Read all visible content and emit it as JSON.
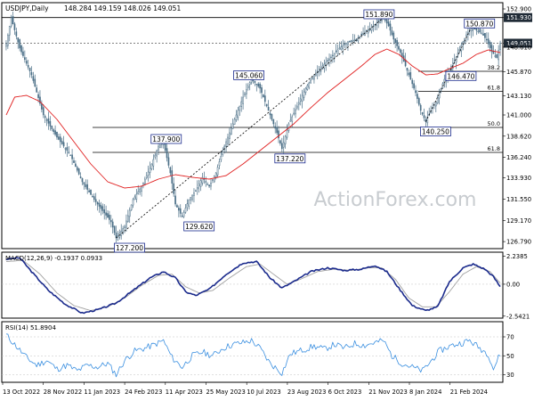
{
  "header": {
    "symbol_line": "USDJPY,Daily",
    "ohlc": "148.284 149.159 148.026 149.051"
  },
  "watermark": "ActionForex.com",
  "colors": {
    "candle": "#4a6e86",
    "ma": "#e02020",
    "level": "#000000",
    "macd": "#1a2a8c",
    "signal": "#a0a0a0",
    "rsi": "#3a8fe0",
    "label_border": "#1a2a8c",
    "highlight": "#1f2a36"
  },
  "chart_data": [
    {
      "type": "candlestick",
      "title": "USDJPY,Daily",
      "ylim": [
        126.0,
        153.6
      ],
      "y_ticks": [
        "152.900",
        "151.930",
        "149.051",
        "148.610",
        "145.870",
        "143.130",
        "141.000",
        "138.620",
        "136.240",
        "133.930",
        "131.550",
        "129.170",
        "126.790"
      ],
      "x_ticks": [
        "13 Oct 2022",
        "28 Nov 2022",
        "11 Jan 2023",
        "24 Feb 2023",
        "11 Apr 2023",
        "25 May 2023",
        "10 Jul 2023",
        "23 Aug 2023",
        "6 Oct 2023",
        "21 Nov 2023",
        "8 Jan 2024",
        "21 Feb 2024"
      ],
      "price_path": [
        [
          0,
          149.0
        ],
        [
          3,
          151.9
        ],
        [
          8,
          148.5
        ],
        [
          15,
          145.5
        ],
        [
          22,
          141.0
        ],
        [
          30,
          138.5
        ],
        [
          38,
          136.5
        ],
        [
          45,
          133.5
        ],
        [
          52,
          131.5
        ],
        [
          58,
          130.0
        ],
        [
          62,
          129.0
        ],
        [
          65,
          127.2
        ],
        [
          70,
          128.5
        ],
        [
          75,
          131.5
        ],
        [
          80,
          133.0
        ],
        [
          85,
          135.0
        ],
        [
          90,
          137.5
        ],
        [
          93,
          137.9
        ],
        [
          97,
          134.5
        ],
        [
          100,
          131.0
        ],
        [
          104,
          129.6
        ],
        [
          108,
          131.5
        ],
        [
          112,
          132.5
        ],
        [
          116,
          134.0
        ],
        [
          120,
          133.0
        ],
        [
          124,
          134.5
        ],
        [
          128,
          137.0
        ],
        [
          132,
          139.0
        ],
        [
          136,
          141.0
        ],
        [
          140,
          143.0
        ],
        [
          145,
          145.06
        ],
        [
          150,
          144.0
        ],
        [
          155,
          141.5
        ],
        [
          160,
          139.0
        ],
        [
          163,
          137.22
        ],
        [
          167,
          140.0
        ],
        [
          172,
          142.0
        ],
        [
          177,
          144.0
        ],
        [
          182,
          145.5
        ],
        [
          187,
          146.5
        ],
        [
          192,
          147.5
        ],
        [
          197,
          148.5
        ],
        [
          202,
          149.2
        ],
        [
          207,
          149.5
        ],
        [
          212,
          150.3
        ],
        [
          216,
          150.8
        ],
        [
          220,
          151.5
        ],
        [
          223,
          151.9
        ],
        [
          226,
          151.0
        ],
        [
          229,
          149.5
        ],
        [
          233,
          148.0
        ],
        [
          236,
          146.5
        ],
        [
          239,
          145.0
        ],
        [
          242,
          143.5
        ],
        [
          245,
          141.5
        ],
        [
          248,
          140.25
        ],
        [
          251,
          141.5
        ],
        [
          254,
          142.5
        ],
        [
          257,
          144.0
        ],
        [
          260,
          145.5
        ],
        [
          263,
          146.47
        ],
        [
          266,
          147.5
        ],
        [
          269,
          148.8
        ],
        [
          272,
          150.0
        ],
        [
          275,
          150.87
        ],
        [
          278,
          150.5
        ],
        [
          281,
          150.2
        ],
        [
          284,
          149.4
        ],
        [
          287,
          148.1
        ],
        [
          290,
          147.4
        ],
        [
          292,
          149.051
        ]
      ],
      "moving_average": [
        [
          0,
          141.0
        ],
        [
          5,
          143.0
        ],
        [
          12,
          143.2
        ],
        [
          20,
          142.5
        ],
        [
          30,
          140.5
        ],
        [
          40,
          138.0
        ],
        [
          50,
          135.5
        ],
        [
          60,
          133.5
        ],
        [
          70,
          132.8
        ],
        [
          80,
          133.0
        ],
        [
          90,
          133.8
        ],
        [
          100,
          134.3
        ],
        [
          110,
          134.0
        ],
        [
          120,
          133.8
        ],
        [
          130,
          134.2
        ],
        [
          140,
          135.5
        ],
        [
          150,
          137.0
        ],
        [
          160,
          138.5
        ],
        [
          170,
          140.0
        ],
        [
          180,
          141.8
        ],
        [
          190,
          143.5
        ],
        [
          200,
          145.0
        ],
        [
          210,
          146.5
        ],
        [
          218,
          147.8
        ],
        [
          225,
          148.4
        ],
        [
          232,
          147.8
        ],
        [
          240,
          146.5
        ],
        [
          248,
          145.5
        ],
        [
          255,
          145.6
        ],
        [
          262,
          146.2
        ],
        [
          270,
          146.8
        ],
        [
          278,
          147.8
        ],
        [
          285,
          148.3
        ],
        [
          292,
          148.0
        ]
      ],
      "levels": [
        {
          "value": 151.93,
          "label": "151.930"
        },
        {
          "value": 149.051,
          "label": "149.051"
        },
        {
          "value": 143.65,
          "label": "61.8",
          "extends_left": false
        },
        {
          "value": 145.9,
          "label": "38.2",
          "extends_left": false
        },
        {
          "value": 139.6,
          "label": "50.0",
          "extends_left": true
        },
        {
          "value": 136.8,
          "label": "61.8",
          "extends_left": true
        }
      ],
      "annotations": [
        {
          "label": "127.200",
          "bar": 65,
          "value": 127.2
        },
        {
          "label": "137.900",
          "bar": 93,
          "value": 137.9
        },
        {
          "label": "129.620",
          "bar": 104,
          "value": 129.6
        },
        {
          "label": "145.060",
          "bar": 145,
          "value": 145.06
        },
        {
          "label": "137.220",
          "bar": 163,
          "value": 137.22
        },
        {
          "label": "151.890",
          "bar": 223,
          "value": 151.9
        },
        {
          "label": "140.250",
          "bar": 248,
          "value": 140.25
        },
        {
          "label": "146.470",
          "bar": 263,
          "value": 146.47
        },
        {
          "label": "150.870",
          "bar": 275,
          "value": 150.87
        }
      ]
    },
    {
      "type": "line",
      "title": "MACD(12,26,9) -0.1937 0.0933",
      "ylim": [
        -2.7,
        2.55
      ],
      "y_ticks": [
        "2.2385",
        "0.00",
        "-2.5421"
      ],
      "series": [
        {
          "name": "MACD",
          "values_path": [
            [
              0,
              2.0
            ],
            [
              8,
              2.1
            ],
            [
              15,
              1.0
            ],
            [
              25,
              -0.5
            ],
            [
              35,
              -1.6
            ],
            [
              45,
              -2.3
            ],
            [
              55,
              -2.0
            ],
            [
              65,
              -1.5
            ],
            [
              75,
              -0.5
            ],
            [
              85,
              0.5
            ],
            [
              93,
              1.0
            ],
            [
              100,
              0.5
            ],
            [
              106,
              -0.6
            ],
            [
              112,
              -0.9
            ],
            [
              120,
              -0.4
            ],
            [
              130,
              0.8
            ],
            [
              140,
              1.7
            ],
            [
              148,
              1.8
            ],
            [
              156,
              0.5
            ],
            [
              163,
              -0.3
            ],
            [
              170,
              0.2
            ],
            [
              180,
              1.0
            ],
            [
              190,
              1.3
            ],
            [
              200,
              1.1
            ],
            [
              210,
              1.2
            ],
            [
              218,
              1.5
            ],
            [
              225,
              1.0
            ],
            [
              232,
              -0.3
            ],
            [
              240,
              -1.7
            ],
            [
              248,
              -2.1
            ],
            [
              255,
              -1.8
            ],
            [
              262,
              0.2
            ],
            [
              270,
              1.3
            ],
            [
              276,
              1.6
            ],
            [
              283,
              1.2
            ],
            [
              288,
              0.6
            ],
            [
              292,
              -0.1937
            ]
          ]
        },
        {
          "name": "Signal",
          "values_path": [
            [
              0,
              1.8
            ],
            [
              10,
              1.9
            ],
            [
              20,
              0.8
            ],
            [
              30,
              -0.7
            ],
            [
              40,
              -1.7
            ],
            [
              50,
              -2.1
            ],
            [
              60,
              -1.8
            ],
            [
              70,
              -1.1
            ],
            [
              80,
              -0.1
            ],
            [
              90,
              0.7
            ],
            [
              98,
              0.8
            ],
            [
              106,
              -0.2
            ],
            [
              114,
              -0.7
            ],
            [
              122,
              -0.5
            ],
            [
              132,
              0.5
            ],
            [
              142,
              1.4
            ],
            [
              150,
              1.6
            ],
            [
              158,
              0.8
            ],
            [
              166,
              0.0
            ],
            [
              174,
              0.4
            ],
            [
              184,
              1.0
            ],
            [
              194,
              1.2
            ],
            [
              204,
              1.1
            ],
            [
              214,
              1.3
            ],
            [
              222,
              1.3
            ],
            [
              230,
              0.4
            ],
            [
              238,
              -1.1
            ],
            [
              246,
              -1.8
            ],
            [
              254,
              -1.8
            ],
            [
              262,
              -0.6
            ],
            [
              270,
              0.8
            ],
            [
              278,
              1.4
            ],
            [
              286,
              1.0
            ],
            [
              292,
              0.0933
            ]
          ]
        }
      ]
    },
    {
      "type": "line",
      "title": "RSI(14) 51.8904",
      "ylim": [
        22,
        86
      ],
      "y_ticks": [
        "70",
        "50",
        "30"
      ],
      "series": [
        {
          "name": "RSI",
          "values_path": [
            [
              0,
              72
            ],
            [
              6,
              60
            ],
            [
              12,
              48
            ],
            [
              18,
              40
            ],
            [
              24,
              45
            ],
            [
              30,
              36
            ],
            [
              36,
              40
            ],
            [
              42,
              34
            ],
            [
              48,
              40
            ],
            [
              54,
              38
            ],
            [
              60,
              42
            ],
            [
              65,
              30
            ],
            [
              70,
              45
            ],
            [
              76,
              55
            ],
            [
              82,
              58
            ],
            [
              88,
              62
            ],
            [
              93,
              66
            ],
            [
              98,
              48
            ],
            [
              104,
              38
            ],
            [
              110,
              50
            ],
            [
              116,
              54
            ],
            [
              122,
              50
            ],
            [
              128,
              58
            ],
            [
              134,
              62
            ],
            [
              140,
              64
            ],
            [
              145,
              66
            ],
            [
              150,
              58
            ],
            [
              156,
              42
            ],
            [
              163,
              32
            ],
            [
              168,
              52
            ],
            [
              175,
              56
            ],
            [
              182,
              60
            ],
            [
              188,
              57
            ],
            [
              194,
              62
            ],
            [
              200,
              58
            ],
            [
              206,
              63
            ],
            [
              212,
              61
            ],
            [
              218,
              64
            ],
            [
              223,
              66
            ],
            [
              228,
              50
            ],
            [
              234,
              42
            ],
            [
              240,
              38
            ],
            [
              246,
              34
            ],
            [
              250,
              42
            ],
            [
              256,
              55
            ],
            [
              262,
              60
            ],
            [
              268,
              63
            ],
            [
              274,
              66
            ],
            [
              280,
              58
            ],
            [
              285,
              52
            ],
            [
              288,
              36
            ],
            [
              292,
              51.89
            ]
          ]
        }
      ]
    }
  ]
}
